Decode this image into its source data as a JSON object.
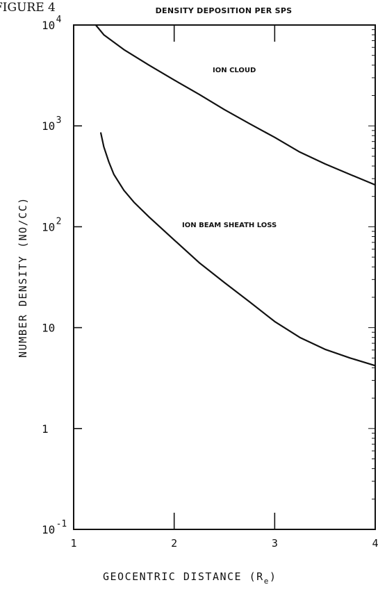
{
  "page_label": "FIGURE 4",
  "chart_data": {
    "type": "line",
    "title": "DENSITY DEPOSITION PER SPS",
    "xlabel": "GEOCENTRIC DISTANCE (R",
    "xlabel_subscript": "e",
    "xlabel_close": ")",
    "ylabel": "NUMBER DENSITY (NO/CC)",
    "x_scale": "linear",
    "y_scale": "log",
    "xlim": [
      1,
      4
    ],
    "ylim": [
      0.1,
      10000
    ],
    "x_ticks": [
      1,
      2,
      3,
      4
    ],
    "x_tick_labels": [
      "1",
      "2",
      "3",
      "4"
    ],
    "y_ticks": [
      {
        "value": 0.1,
        "base": "10",
        "exp": "-1"
      },
      {
        "value": 1,
        "base": "1",
        "exp": ""
      },
      {
        "value": 10,
        "base": "10",
        "exp": ""
      },
      {
        "value": 100,
        "base": "10",
        "exp": "2"
      },
      {
        "value": 1000,
        "base": "10",
        "exp": "3"
      },
      {
        "value": 10000,
        "base": "10",
        "exp": "4"
      }
    ],
    "grid": false,
    "series": [
      {
        "name": "ION CLOUD",
        "x": [
          1.22,
          1.3,
          1.5,
          1.75,
          2.0,
          2.25,
          2.5,
          2.75,
          3.0,
          3.25,
          3.5,
          3.75,
          4.0
        ],
        "y": [
          10000,
          8000,
          5700,
          4000,
          2850,
          2050,
          1450,
          1050,
          770,
          550,
          420,
          330,
          260
        ]
      },
      {
        "name": "ION BEAM SHEATH LOSS",
        "x": [
          1.27,
          1.3,
          1.35,
          1.4,
          1.5,
          1.6,
          1.75,
          2.0,
          2.25,
          2.5,
          2.75,
          3.0,
          3.25,
          3.5,
          3.75,
          4.0
        ],
        "y": [
          850,
          620,
          440,
          330,
          230,
          175,
          125,
          74,
          44,
          28,
          18,
          11.5,
          8.0,
          6.1,
          5.0,
          4.2
        ]
      }
    ]
  }
}
